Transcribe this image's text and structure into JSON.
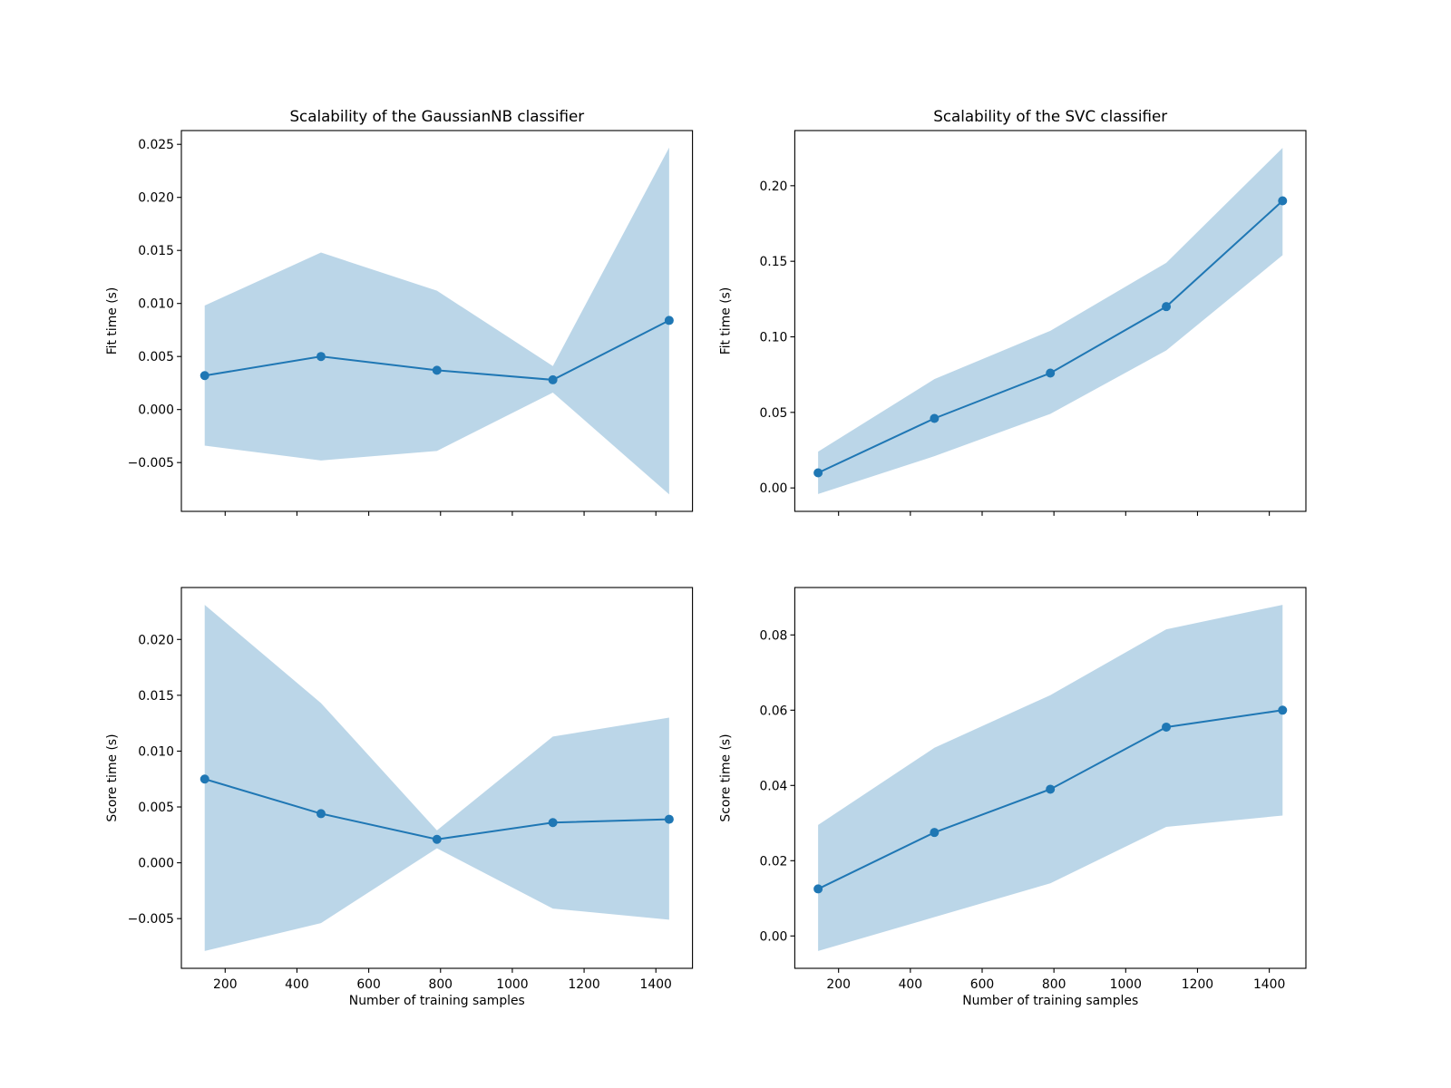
{
  "chart_data": [
    {
      "type": "line",
      "title": "Scalability of the GaussianNB classifier",
      "xlabel": "",
      "ylabel": "Fit time (s)",
      "x": [
        143,
        467,
        790,
        1113,
        1437
      ],
      "mean": [
        0.0032,
        0.005,
        0.0037,
        0.0028,
        0.0084
      ],
      "upper": [
        0.0098,
        0.0148,
        0.0112,
        0.0041,
        0.0247
      ],
      "lower": [
        -0.0034,
        -0.0048,
        -0.0039,
        0.0016,
        -0.008
      ],
      "xlim": [
        78,
        1502
      ],
      "ylim": [
        -0.0096,
        0.0263
      ],
      "xticks": [
        200,
        400,
        600,
        800,
        1000,
        1200,
        1400
      ],
      "xtick_labels_shown": false,
      "yticks": [
        -0.005,
        0.0,
        0.005,
        0.01,
        0.015,
        0.02,
        0.025
      ],
      "ytick_labels": [
        "−0.005",
        "0.000",
        "0.005",
        "0.010",
        "0.015",
        "0.020",
        "0.025"
      ],
      "grid": false
    },
    {
      "type": "line",
      "title": "Scalability of the SVC classifier",
      "xlabel": "",
      "ylabel": "Fit time (s)",
      "x": [
        143,
        467,
        790,
        1113,
        1437
      ],
      "mean": [
        0.01,
        0.046,
        0.076,
        0.12,
        0.19
      ],
      "upper": [
        0.024,
        0.072,
        0.104,
        0.149,
        0.225
      ],
      "lower": [
        -0.004,
        0.021,
        0.049,
        0.091,
        0.154
      ],
      "xlim": [
        78,
        1502
      ],
      "ylim": [
        -0.0155,
        0.2365
      ],
      "xticks": [
        200,
        400,
        600,
        800,
        1000,
        1200,
        1400
      ],
      "xtick_labels_shown": false,
      "yticks": [
        0.0,
        0.05,
        0.1,
        0.15,
        0.2
      ],
      "ytick_labels": [
        "0.00",
        "0.05",
        "0.10",
        "0.15",
        "0.20"
      ],
      "grid": false
    },
    {
      "type": "line",
      "title": "",
      "xlabel": "Number of training samples",
      "ylabel": "Score time (s)",
      "x": [
        143,
        467,
        790,
        1113,
        1437
      ],
      "mean": [
        0.0075,
        0.0044,
        0.0021,
        0.0036,
        0.0039
      ],
      "upper": [
        0.0231,
        0.0143,
        0.0029,
        0.0113,
        0.013
      ],
      "lower": [
        -0.0079,
        -0.0054,
        0.0013,
        -0.0041,
        -0.0051
      ],
      "xlim": [
        78,
        1502
      ],
      "ylim": [
        -0.00945,
        0.02465
      ],
      "xticks": [
        200,
        400,
        600,
        800,
        1000,
        1200,
        1400
      ],
      "xtick_labels": [
        "200",
        "400",
        "600",
        "800",
        "1000",
        "1200",
        "1400"
      ],
      "xtick_labels_shown": true,
      "yticks": [
        -0.005,
        0.0,
        0.005,
        0.01,
        0.015,
        0.02
      ],
      "ytick_labels": [
        "−0.005",
        "0.000",
        "0.005",
        "0.010",
        "0.015",
        "0.020"
      ],
      "grid": false
    },
    {
      "type": "line",
      "title": "",
      "xlabel": "Number of training samples",
      "ylabel": "Score time (s)",
      "x": [
        143,
        467,
        790,
        1113,
        1437
      ],
      "mean": [
        0.0125,
        0.0275,
        0.039,
        0.0555,
        0.06
      ],
      "upper": [
        0.0295,
        0.05,
        0.064,
        0.0815,
        0.088
      ],
      "lower": [
        -0.004,
        0.005,
        0.014,
        0.029,
        0.032
      ],
      "xlim": [
        78,
        1502
      ],
      "ylim": [
        -0.0086,
        0.0926
      ],
      "xticks": [
        200,
        400,
        600,
        800,
        1000,
        1200,
        1400
      ],
      "xtick_labels": [
        "200",
        "400",
        "600",
        "800",
        "1000",
        "1200",
        "1400"
      ],
      "xtick_labels_shown": true,
      "yticks": [
        0.0,
        0.02,
        0.04,
        0.06,
        0.08
      ],
      "ytick_labels": [
        "0.00",
        "0.02",
        "0.04",
        "0.06",
        "0.08"
      ],
      "grid": false
    }
  ],
  "colors": {
    "line": "#1f77b4",
    "band": "#1f77b4",
    "band_opacity": 0.3
  }
}
